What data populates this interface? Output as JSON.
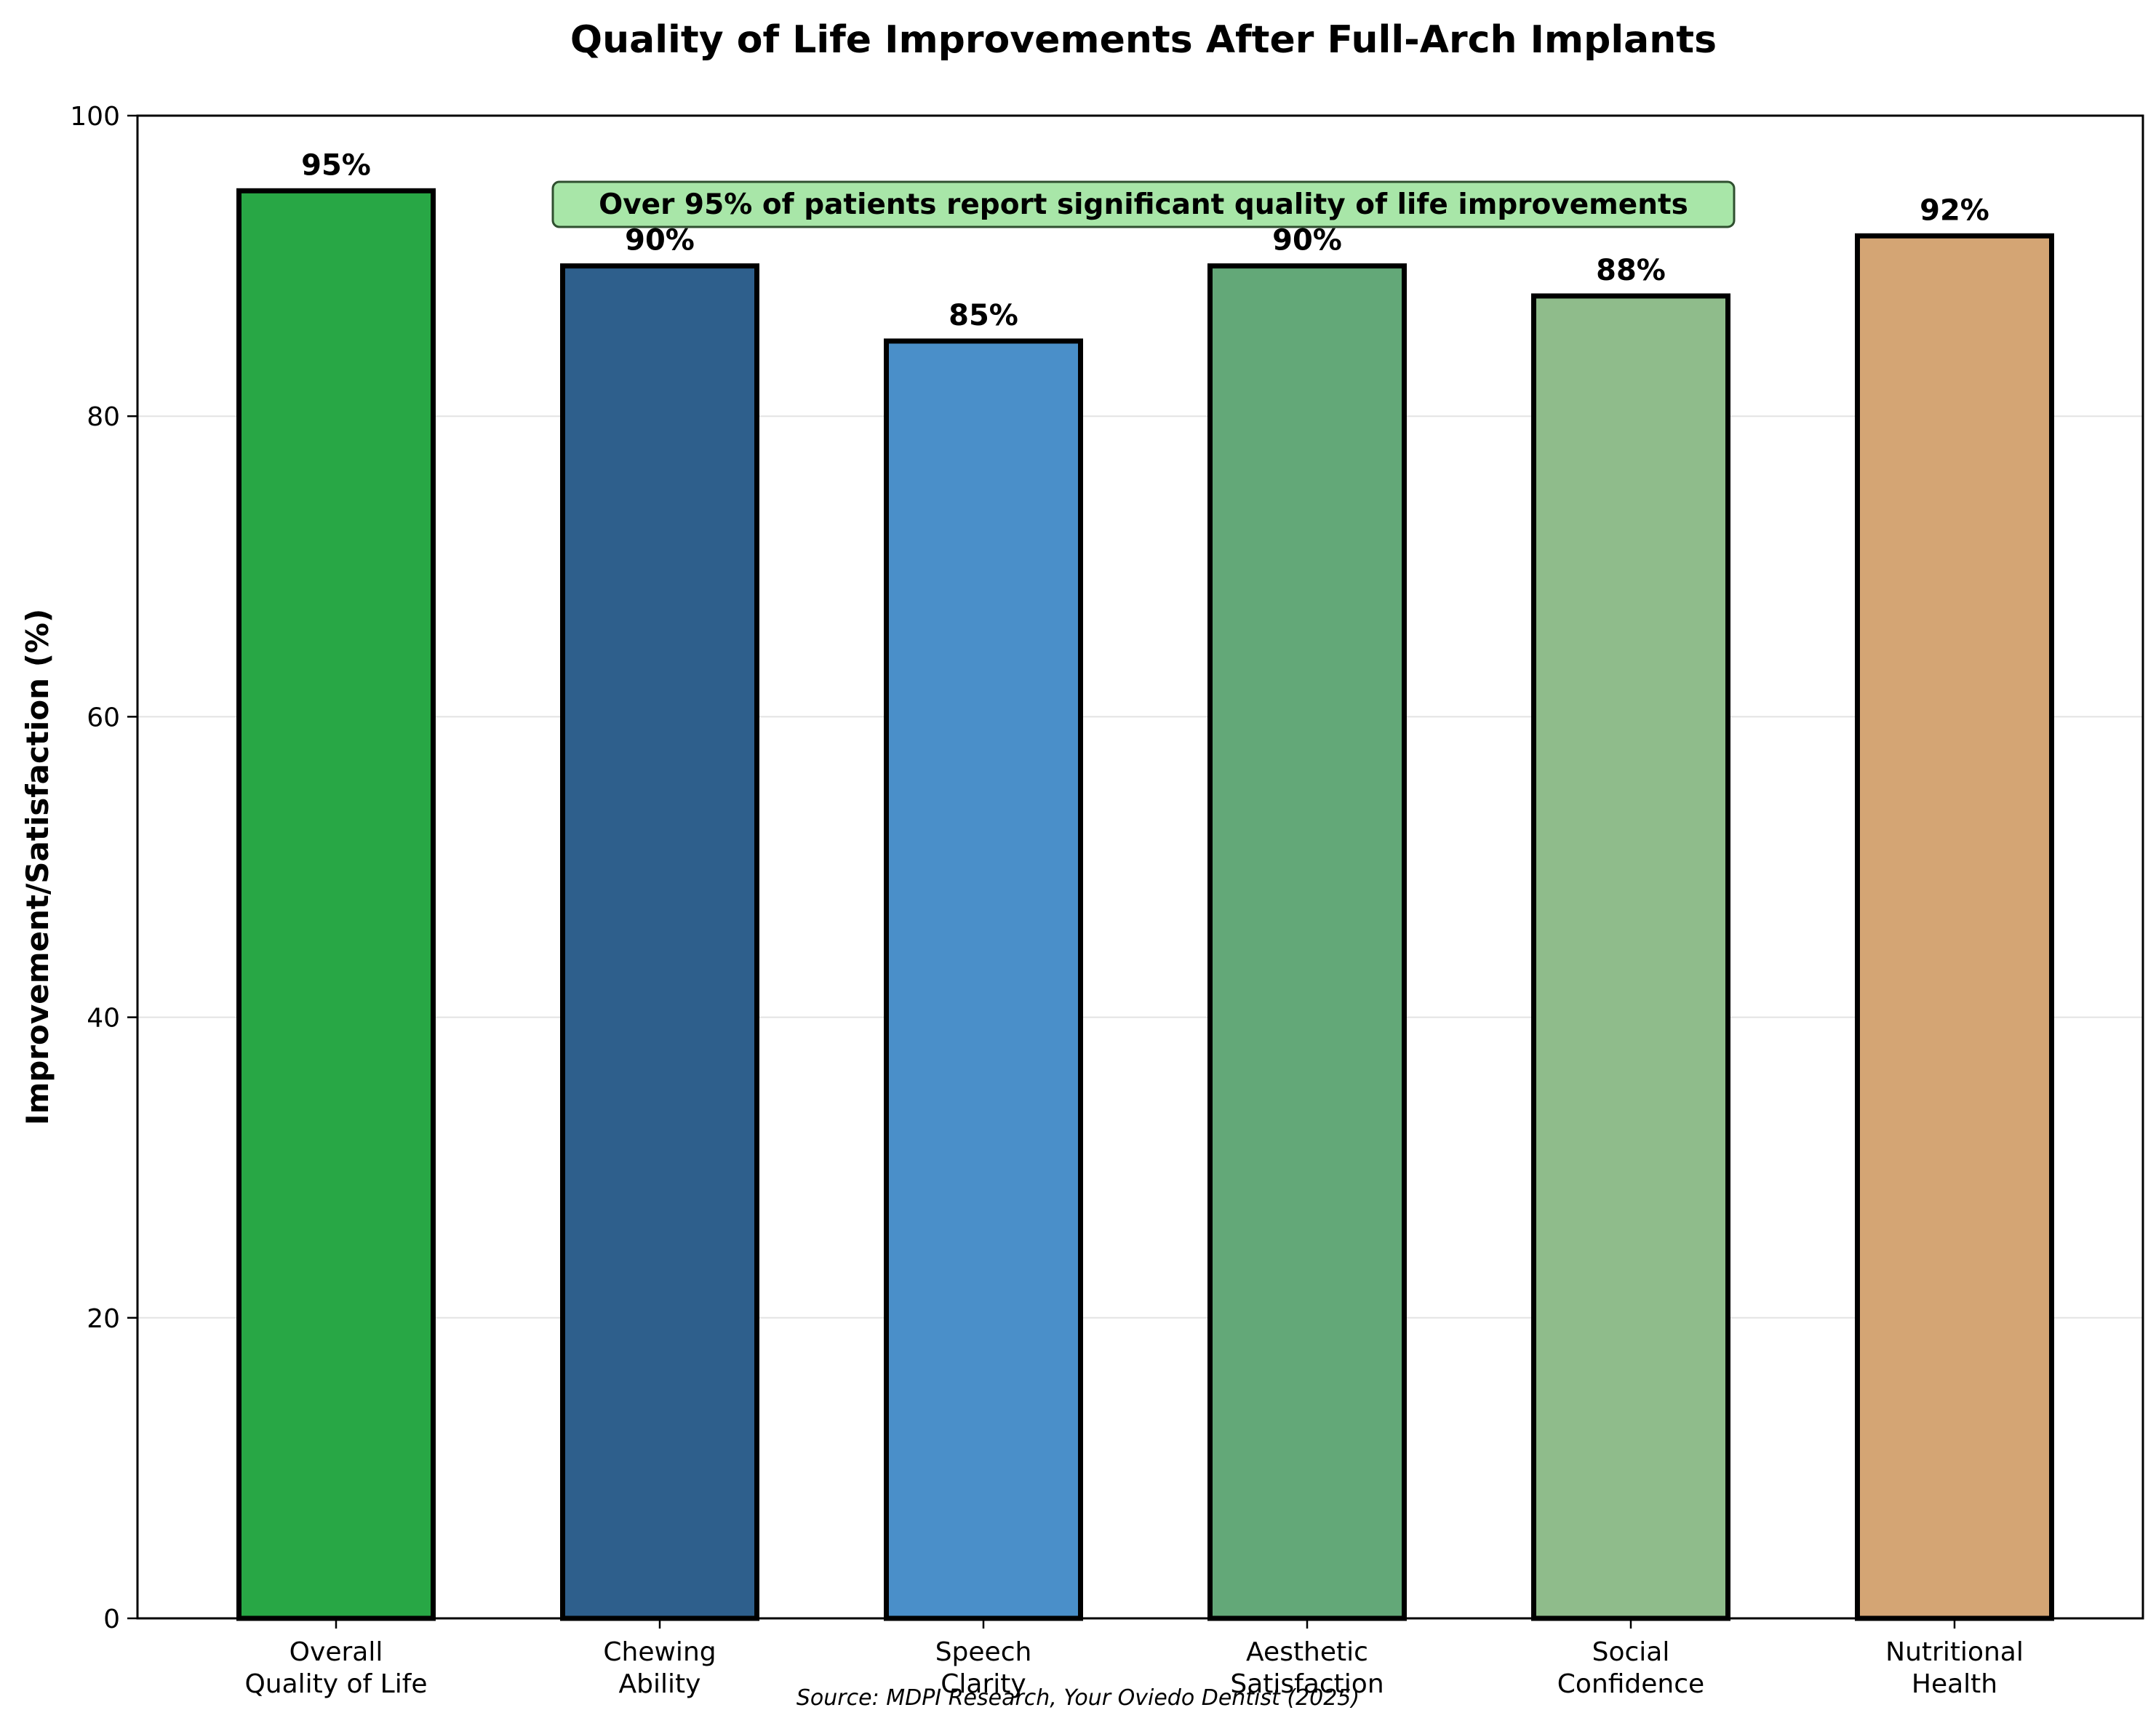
{
  "chart_data": {
    "type": "bar",
    "title": "Quality of Life Improvements After Full-Arch Implants",
    "xlabel": "",
    "ylabel": "Improvement/Satisfaction (%)",
    "ylim": [
      0,
      100
    ],
    "yticks": [
      "0",
      "20",
      "40",
      "60",
      "80",
      "100"
    ],
    "grid": "horizontal",
    "categories": [
      [
        "Overall",
        "Quality of Life"
      ],
      [
        "Chewing",
        "Ability"
      ],
      [
        "Speech",
        "Clarity"
      ],
      [
        "Aesthetic",
        "Satisfaction"
      ],
      [
        "Social",
        "Confidence"
      ],
      [
        "Nutritional",
        "Health"
      ]
    ],
    "values": [
      95,
      90,
      85,
      90,
      88,
      92
    ],
    "value_labels": [
      "95%",
      "90%",
      "85%",
      "90%",
      "88%",
      "92%"
    ],
    "colors": [
      "#28a745",
      "#2e5f8c",
      "#4a8fc9",
      "#63a878",
      "#8fbc8b",
      "#d4a574"
    ],
    "annotation": "Over 95% of patients report significant quality of life improvements",
    "annotation_style": {
      "fill": "#a8e6a8",
      "edge": "#2f4f2f"
    },
    "source": "Source: MDPI Research, Your Oviedo Dentist (2025)"
  }
}
